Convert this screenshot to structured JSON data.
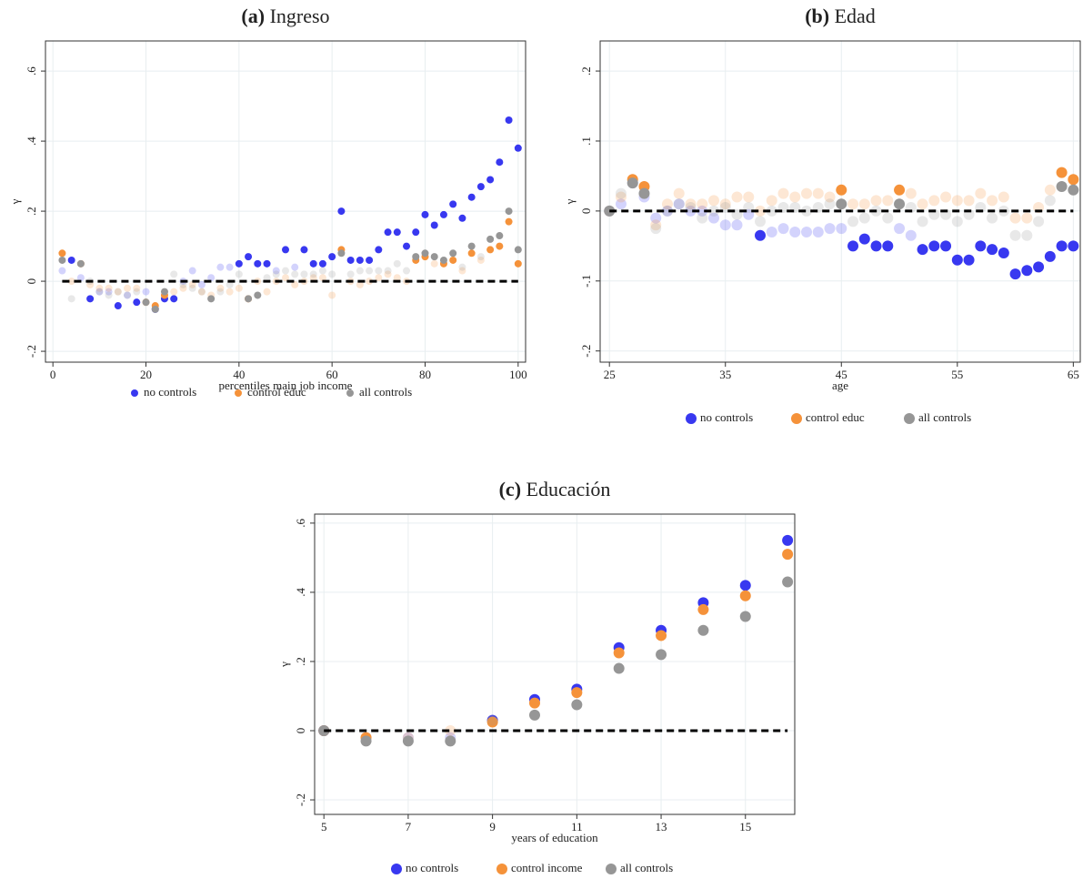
{
  "chart_data": [
    {
      "type": "scatter",
      "panel_label": "(a)",
      "title": "Ingreso",
      "x_label": "percentiles main job income",
      "y_label": "γ",
      "x": [
        2,
        4,
        6,
        8,
        10,
        12,
        14,
        16,
        18,
        20,
        22,
        24,
        26,
        28,
        30,
        32,
        34,
        36,
        38,
        40,
        42,
        44,
        46,
        48,
        50,
        52,
        54,
        56,
        58,
        60,
        62,
        64,
        66,
        68,
        70,
        72,
        74,
        76,
        78,
        80,
        82,
        84,
        86,
        88,
        90,
        92,
        94,
        96,
        98,
        100
      ],
      "series": [
        {
          "name": "no controls",
          "color": "#3838f0",
          "values": [
            0.03,
            0.06,
            0.01,
            -0.05,
            -0.03,
            -0.03,
            -0.07,
            -0.04,
            -0.06,
            -0.03,
            -0.08,
            -0.05,
            -0.05,
            0.0,
            0.03,
            -0.01,
            0.01,
            0.04,
            0.04,
            0.05,
            0.07,
            0.05,
            0.05,
            0.03,
            0.09,
            0.04,
            0.09,
            0.05,
            0.05,
            0.07,
            0.2,
            0.06,
            0.06,
            0.06,
            0.09,
            0.14,
            0.14,
            0.1,
            0.14,
            0.19,
            0.16,
            0.19,
            0.22,
            0.18,
            0.24,
            0.27,
            0.29,
            0.34,
            0.46,
            0.38
          ],
          "significant": [
            false,
            true,
            false,
            true,
            false,
            false,
            true,
            false,
            true,
            false,
            true,
            true,
            true,
            false,
            false,
            false,
            false,
            false,
            false,
            true,
            true,
            true,
            true,
            false,
            true,
            false,
            true,
            true,
            true,
            true,
            true,
            true,
            true,
            true,
            true,
            true,
            true,
            true,
            true,
            true,
            true,
            true,
            true,
            true,
            true,
            true,
            true,
            true,
            true,
            true
          ]
        },
        {
          "name": "control educ",
          "color": "#f5923a",
          "values": [
            0.08,
            0.0,
            0.05,
            -0.01,
            -0.02,
            -0.02,
            -0.03,
            -0.02,
            -0.02,
            -0.06,
            -0.07,
            -0.04,
            -0.03,
            -0.02,
            -0.01,
            -0.03,
            -0.04,
            -0.02,
            -0.03,
            -0.02,
            -0.05,
            0.0,
            -0.03,
            0.0,
            0.01,
            -0.01,
            0.0,
            0.01,
            0.01,
            -0.04,
            0.09,
            0.0,
            -0.01,
            0.0,
            0.01,
            0.02,
            0.01,
            0.0,
            0.06,
            0.07,
            0.05,
            0.05,
            0.06,
            0.03,
            0.08,
            0.06,
            0.09,
            0.1,
            0.17,
            0.05
          ],
          "significant": [
            true,
            false,
            true,
            false,
            false,
            false,
            false,
            false,
            false,
            true,
            true,
            true,
            false,
            false,
            false,
            false,
            false,
            false,
            false,
            false,
            true,
            false,
            false,
            false,
            false,
            false,
            false,
            false,
            false,
            false,
            true,
            false,
            false,
            false,
            false,
            false,
            false,
            false,
            true,
            true,
            false,
            true,
            true,
            false,
            true,
            false,
            true,
            true,
            true,
            true
          ]
        },
        {
          "name": "all controls",
          "color": "#969696",
          "values": [
            0.06,
            -0.05,
            0.05,
            0.0,
            -0.03,
            -0.04,
            -0.03,
            -0.04,
            -0.03,
            -0.06,
            -0.08,
            -0.03,
            0.02,
            -0.01,
            -0.02,
            -0.03,
            -0.05,
            -0.03,
            -0.01,
            0.02,
            -0.05,
            -0.04,
            0.01,
            0.02,
            0.03,
            0.02,
            0.02,
            0.02,
            0.03,
            0.02,
            0.08,
            0.02,
            0.03,
            0.03,
            0.03,
            0.03,
            0.05,
            0.03,
            0.07,
            0.08,
            0.07,
            0.06,
            0.08,
            0.04,
            0.1,
            0.07,
            0.12,
            0.13,
            0.2,
            0.09
          ],
          "significant": [
            true,
            false,
            true,
            false,
            false,
            false,
            false,
            false,
            false,
            true,
            true,
            true,
            false,
            false,
            false,
            false,
            true,
            false,
            false,
            false,
            true,
            true,
            false,
            false,
            false,
            false,
            false,
            false,
            false,
            false,
            true,
            false,
            false,
            false,
            false,
            false,
            false,
            false,
            true,
            true,
            true,
            true,
            true,
            false,
            true,
            false,
            true,
            true,
            true,
            true
          ]
        }
      ],
      "xlim": [
        -1.6,
        101.6
      ],
      "xticks": [
        0,
        20,
        40,
        60,
        80,
        100
      ],
      "ylim": [
        -0.231,
        0.686
      ],
      "yticks": [
        {
          "value": -0.2,
          "label": "-.2"
        },
        0,
        {
          "value": 0.2,
          "label": ".2"
        },
        {
          "value": 0.4,
          "label": ".4"
        },
        {
          "value": 0.6,
          "label": ".6"
        }
      ],
      "hline": 0,
      "grid": true
    },
    {
      "type": "scatter",
      "panel_label": "(b)",
      "title": "Edad",
      "x_label": "age",
      "y_label": "γ",
      "x": [
        25,
        26,
        27,
        28,
        29,
        30,
        31,
        32,
        33,
        34,
        35,
        36,
        37,
        38,
        39,
        40,
        41,
        42,
        43,
        44,
        45,
        46,
        47,
        48,
        49,
        50,
        51,
        52,
        53,
        54,
        55,
        56,
        57,
        58,
        59,
        60,
        61,
        62,
        63,
        64,
        65
      ],
      "series": [
        {
          "name": "no controls",
          "color": "#3838f0",
          "values": [
            0,
            0.01,
            0.04,
            0.02,
            -0.01,
            0,
            0.01,
            0,
            0,
            -0.01,
            -0.02,
            -0.02,
            -0.005,
            -0.035,
            -0.03,
            -0.025,
            -0.03,
            -0.03,
            -0.03,
            -0.025,
            -0.025,
            -0.05,
            -0.04,
            -0.05,
            -0.05,
            -0.025,
            -0.035,
            -0.055,
            -0.05,
            -0.05,
            -0.07,
            -0.07,
            -0.05,
            -0.055,
            -0.06,
            -0.09,
            -0.085,
            -0.08,
            -0.065,
            -0.05,
            -0.05
          ],
          "significant": [
            false,
            false,
            false,
            false,
            false,
            false,
            false,
            false,
            false,
            false,
            false,
            false,
            false,
            true,
            false,
            false,
            false,
            false,
            false,
            false,
            false,
            true,
            true,
            true,
            true,
            false,
            false,
            true,
            true,
            true,
            true,
            true,
            true,
            true,
            true,
            true,
            true,
            true,
            true,
            true,
            true
          ]
        },
        {
          "name": "control educ",
          "color": "#f5923a",
          "values": [
            0,
            0.02,
            0.045,
            0.035,
            -0.02,
            0.01,
            0.025,
            0.01,
            0.01,
            0.015,
            0.01,
            0.02,
            0.02,
            0,
            0.015,
            0.025,
            0.02,
            0.025,
            0.025,
            0.02,
            0.03,
            0.01,
            0.01,
            0.015,
            0.015,
            0.03,
            0.025,
            0.01,
            0.015,
            0.02,
            0.015,
            0.015,
            0.025,
            0.015,
            0.02,
            -0.01,
            -0.01,
            0.005,
            0.03,
            0.055,
            0.045
          ],
          "significant": [
            false,
            false,
            true,
            true,
            false,
            false,
            false,
            false,
            false,
            false,
            false,
            false,
            false,
            false,
            false,
            false,
            false,
            false,
            false,
            false,
            true,
            false,
            false,
            false,
            false,
            true,
            false,
            false,
            false,
            false,
            false,
            false,
            false,
            false,
            false,
            false,
            false,
            false,
            false,
            true,
            true
          ]
        },
        {
          "name": "all controls",
          "color": "#969696",
          "values": [
            0,
            0.025,
            0.04,
            0.025,
            -0.025,
            0,
            0.01,
            0.005,
            -0.01,
            0,
            0.005,
            -0.005,
            0.005,
            -0.015,
            0,
            0.005,
            0.005,
            0,
            0.005,
            0.01,
            0.01,
            -0.015,
            -0.01,
            0,
            -0.01,
            0.01,
            0.005,
            -0.015,
            -0.005,
            -0.005,
            -0.015,
            -0.005,
            0.005,
            -0.01,
            0,
            -0.035,
            -0.035,
            -0.015,
            0.015,
            0.035,
            0.03
          ],
          "significant": [
            true,
            false,
            true,
            true,
            false,
            false,
            false,
            false,
            false,
            false,
            false,
            false,
            false,
            false,
            false,
            false,
            false,
            false,
            false,
            false,
            true,
            false,
            false,
            false,
            false,
            true,
            false,
            false,
            false,
            false,
            false,
            false,
            false,
            false,
            false,
            false,
            false,
            false,
            false,
            true,
            true
          ]
        }
      ],
      "xlim": [
        24.2,
        65.6
      ],
      "xticks": [
        25,
        35,
        45,
        55,
        65
      ],
      "ylim": [
        -0.216,
        0.243
      ],
      "yticks": [
        {
          "value": -0.2,
          "label": "-.2"
        },
        {
          "value": -0.1,
          "label": "-.1"
        },
        0,
        {
          "value": 0.1,
          "label": ".1"
        },
        {
          "value": 0.2,
          "label": ".2"
        }
      ],
      "hline": 0,
      "grid": true
    },
    {
      "type": "scatter",
      "panel_label": "(c)",
      "title": "Educación",
      "x_label": "years of education",
      "y_label": "γ",
      "x": [
        5,
        6,
        7,
        8,
        9,
        10,
        11,
        12,
        13,
        14,
        15,
        16
      ],
      "series": [
        {
          "name": "no controls",
          "color": "#3838f0",
          "values": [
            0,
            -0.02,
            -0.02,
            -0.02,
            0.03,
            0.09,
            0.12,
            0.24,
            0.29,
            0.37,
            0.42,
            0.55
          ],
          "significant": [
            true,
            false,
            false,
            false,
            true,
            true,
            true,
            true,
            true,
            true,
            true,
            true
          ]
        },
        {
          "name": "control income",
          "color": "#f5923a",
          "values": [
            0,
            -0.02,
            -0.02,
            0,
            0.025,
            0.08,
            0.11,
            0.225,
            0.275,
            0.35,
            0.39,
            0.51
          ],
          "significant": [
            true,
            true,
            false,
            false,
            true,
            true,
            true,
            true,
            true,
            true,
            true,
            true
          ]
        },
        {
          "name": "all controls",
          "color": "#969696",
          "values": [
            0,
            -0.03,
            -0.03,
            -0.03,
            0.03,
            0.045,
            0.075,
            0.18,
            0.22,
            0.29,
            0.33,
            0.43
          ],
          "significant": [
            true,
            true,
            true,
            true,
            false,
            true,
            true,
            true,
            true,
            true,
            true,
            true
          ]
        }
      ],
      "xlim": [
        4.78,
        16.17
      ],
      "xticks": [
        5,
        7,
        9,
        11,
        13,
        15
      ],
      "ylim": [
        -0.242,
        0.626
      ],
      "yticks": [
        {
          "value": -0.2,
          "label": "-.2"
        },
        0,
        {
          "value": 0.2,
          "label": ".2"
        },
        {
          "value": 0.4,
          "label": ".4"
        },
        {
          "value": 0.6,
          "label": ".6"
        }
      ],
      "hline": 0,
      "grid": true
    }
  ]
}
